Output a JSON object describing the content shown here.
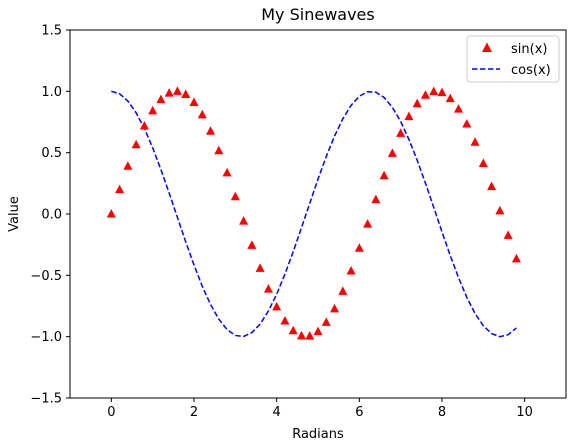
{
  "chart_data": {
    "type": "line",
    "title": "My Sinewaves",
    "xlabel": "Radians",
    "ylabel": "Value",
    "xlim": [
      -1,
      11
    ],
    "ylim": [
      -1.5,
      1.5
    ],
    "xticks": [
      0,
      2,
      4,
      6,
      8,
      10
    ],
    "yticks": [
      -1.5,
      -1.0,
      -0.5,
      0.0,
      0.5,
      1.0,
      1.5
    ],
    "xtick_labels": [
      "0",
      "2",
      "4",
      "6",
      "8",
      "10"
    ],
    "ytick_labels": [
      "−1.5",
      "−1.0",
      "−0.5",
      "0.0",
      "0.5",
      "1.0",
      "1.5"
    ],
    "grid": false,
    "legend_position": "top-right",
    "x": [
      0.0,
      0.2,
      0.4,
      0.6,
      0.8,
      1.0,
      1.2,
      1.4,
      1.6,
      1.8,
      2.0,
      2.2,
      2.4,
      2.6,
      2.8,
      3.0,
      3.2,
      3.4,
      3.6,
      3.8,
      4.0,
      4.2,
      4.4,
      4.6,
      4.8,
      5.0,
      5.2,
      5.4,
      5.6,
      5.8,
      6.0,
      6.2,
      6.4,
      6.6,
      6.8,
      7.0,
      7.2,
      7.4,
      7.6,
      7.8,
      8.0,
      8.2,
      8.4,
      8.6,
      8.8,
      9.0,
      9.2,
      9.4,
      9.6,
      9.8
    ],
    "series": [
      {
        "name": "sin(x)",
        "style": "markers",
        "marker": "triangle",
        "color": "#ff0000",
        "values": [
          0.0,
          0.199,
          0.389,
          0.565,
          0.717,
          0.841,
          0.932,
          0.985,
          1.0,
          0.974,
          0.909,
          0.808,
          0.675,
          0.516,
          0.335,
          0.141,
          -0.058,
          -0.256,
          -0.443,
          -0.612,
          -0.757,
          -0.872,
          -0.952,
          -0.994,
          -0.996,
          -0.959,
          -0.883,
          -0.773,
          -0.631,
          -0.465,
          -0.279,
          -0.083,
          0.117,
          0.312,
          0.494,
          0.657,
          0.794,
          0.899,
          0.968,
          0.998,
          0.989,
          0.941,
          0.855,
          0.734,
          0.585,
          0.412,
          0.223,
          0.025,
          -0.174,
          -0.366
        ]
      },
      {
        "name": "cos(x)",
        "style": "dashed",
        "color": "#0000ff",
        "values": [
          1.0,
          0.98,
          0.921,
          0.825,
          0.697,
          0.54,
          0.362,
          0.17,
          -0.029,
          -0.227,
          -0.416,
          -0.589,
          -0.737,
          -0.857,
          -0.942,
          -0.99,
          -0.998,
          -0.967,
          -0.897,
          -0.791,
          -0.654,
          -0.49,
          -0.307,
          -0.112,
          0.087,
          0.284,
          0.469,
          0.635,
          0.776,
          0.886,
          0.96,
          0.997,
          0.993,
          0.95,
          0.869,
          0.754,
          0.608,
          0.438,
          0.251,
          0.054,
          -0.146,
          -0.339,
          -0.519,
          -0.679,
          -0.811,
          -0.911,
          -0.975,
          -1.0,
          -0.984,
          -0.929
        ]
      }
    ]
  }
}
